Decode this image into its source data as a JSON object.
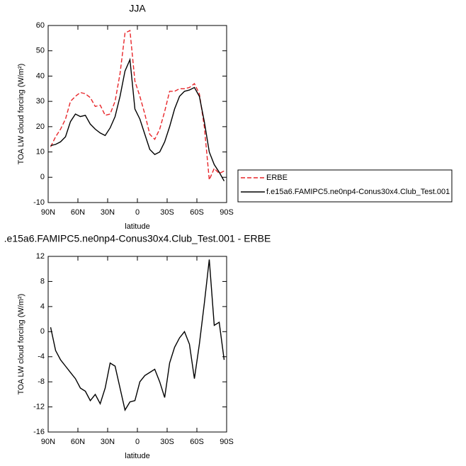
{
  "chart_data": [
    {
      "type": "line",
      "title": "JJA",
      "x_label": "latitude",
      "y_label": "TOA LW cloud forcing (W/m²)",
      "x": [
        87.5,
        82.5,
        77.5,
        72.5,
        67.5,
        62.5,
        57.5,
        52.5,
        47.5,
        42.5,
        37.5,
        32.5,
        27.5,
        22.5,
        17.5,
        12.5,
        7.5,
        2.5,
        -2.5,
        -7.5,
        -12.5,
        -17.5,
        -22.5,
        -27.5,
        -32.5,
        -37.5,
        -42.5,
        -47.5,
        -52.5,
        -57.5,
        -62.5,
        -67.5,
        -72.5,
        -77.5,
        -82.5,
        -87.5
      ],
      "series": [
        {
          "name": "ERBE",
          "color": "#e8262a",
          "dash": true,
          "values": [
            12,
            16,
            19,
            23,
            30,
            32,
            33.5,
            33,
            31.5,
            28,
            28.5,
            24.5,
            25,
            30,
            41,
            57,
            58,
            38,
            32,
            25,
            17,
            15,
            19,
            26,
            34,
            34,
            35,
            35,
            35.5,
            37,
            33,
            20,
            -1,
            3.5,
            1.5,
            2.5
          ]
        },
        {
          "name": "f.e15a6.FAMIPC5.ne0np4-Conus30x4.Club_Test.001",
          "color": "#000000",
          "dash": false,
          "values": [
            12.5,
            13,
            14,
            16,
            22,
            25,
            24,
            24.5,
            21,
            19,
            17.5,
            16.5,
            19.5,
            24,
            32,
            42,
            46.5,
            27,
            23,
            17,
            11,
            9,
            10,
            14,
            20,
            27,
            32,
            34,
            34.5,
            35.5,
            32,
            22,
            10,
            5,
            2,
            -1.5
          ]
        }
      ],
      "xlim": [
        90,
        -90
      ],
      "xticks": [
        {
          "value": 90,
          "label": "90N"
        },
        {
          "value": 60,
          "label": "60N"
        },
        {
          "value": 30,
          "label": "30N"
        },
        0,
        {
          "value": -30,
          "label": "30S"
        },
        {
          "value": -60,
          "label": "60S"
        },
        {
          "value": -90,
          "label": "90S"
        }
      ],
      "ylim": [
        -10,
        60
      ],
      "yticks": [
        -10,
        0,
        10,
        20,
        30,
        40,
        50,
        60
      ],
      "legend": "outside-right"
    },
    {
      "type": "line",
      "title": ".e15a6.FAMIPC5.ne0np4-Conus30x4.Club_Test.001 - ERBE",
      "x_label": "latitude",
      "y_label": "TOA LW cloud forcing (W/m²)",
      "x": [
        87.5,
        82.5,
        77.5,
        72.5,
        67.5,
        62.5,
        57.5,
        52.5,
        47.5,
        42.5,
        37.5,
        32.5,
        27.5,
        22.5,
        17.5,
        12.5,
        7.5,
        2.5,
        -2.5,
        -7.5,
        -12.5,
        -17.5,
        -22.5,
        -27.5,
        -32.5,
        -37.5,
        -42.5,
        -47.5,
        -52.5,
        -57.5,
        -62.5,
        -67.5,
        -72.5,
        -77.5,
        -82.5,
        -87.5
      ],
      "color": "#000000",
      "values": [
        0.7,
        -3,
        -4.5,
        -5.5,
        -6.5,
        -7.5,
        -9,
        -9.5,
        -11,
        -10,
        -11.5,
        -9,
        -5,
        -5.5,
        -9,
        -12.5,
        -11.2,
        -11,
        -8,
        -7,
        -6.5,
        -6,
        -8,
        -10.5,
        -5,
        -2.5,
        -1,
        0,
        -2,
        -7.5,
        -2,
        4.5,
        11.5,
        1,
        1.5,
        -4.5
      ],
      "xlim": [
        90,
        -90
      ],
      "xticks": [
        {
          "value": 90,
          "label": "90N"
        },
        {
          "value": 60,
          "label": "60N"
        },
        {
          "value": 30,
          "label": "30N"
        },
        0,
        {
          "value": -30,
          "label": "30S"
        },
        {
          "value": -60,
          "label": "60S"
        },
        {
          "value": -90,
          "label": "90S"
        }
      ],
      "ylim": [
        -16,
        12
      ],
      "yticks": [
        -16,
        -12,
        -8,
        -4,
        0,
        4,
        8,
        12
      ]
    }
  ]
}
